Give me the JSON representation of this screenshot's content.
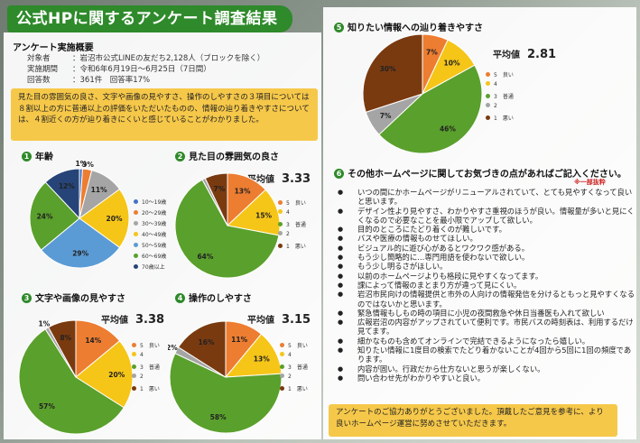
{
  "title": "公式HPに関するアンケート調査結果",
  "survey": {
    "heading": "アンケート実施概要",
    "rows": [
      {
        "label": "対象者",
        "value": "：岩沼市公式LINEの友だち2,128人（ブロックを除く）"
      },
      {
        "label": "実施期間",
        "value": "：令和6年6月19日～6月25日（7日間）"
      },
      {
        "label": "回答数",
        "value": "：361件　回答率17%"
      }
    ]
  },
  "summary": "見た目の雰囲気の良さ、文字や画像の見やすさ、操作のしやすさの３項目については８割以上の方に普通以上の評価をいただいたものの、情報の辿り着きやすさについては、４割近くの方が辿り着きにくいと感じていることがわかりました。",
  "legend_rating": [
    {
      "label": "5　良い",
      "color": "#ed7d31"
    },
    {
      "label": "4",
      "color": "#f5c518"
    },
    {
      "label": "3　普通",
      "color": "#5aa02c"
    },
    {
      "label": "2",
      "color": "#a5a5a5"
    },
    {
      "label": "1　悪い",
      "color": "#7a3a10"
    }
  ],
  "legend_age": [
    {
      "label": "10～19歳",
      "color": "#4472c4"
    },
    {
      "label": "20～29歳",
      "color": "#ed7d31"
    },
    {
      "label": "30～39歳",
      "color": "#a5a5a5"
    },
    {
      "label": "40～49歳",
      "color": "#f5c518"
    },
    {
      "label": "50～59歳",
      "color": "#5b9bd5"
    },
    {
      "label": "60～69歳",
      "color": "#5aa02c"
    },
    {
      "label": "70歳以上",
      "color": "#264478"
    }
  ],
  "chart_data": [
    {
      "type": "pie",
      "number": "1",
      "title": "年齢",
      "slices": [
        {
          "label": "10～19歳",
          "value": 1,
          "color": "#4472c4"
        },
        {
          "label": "20～29歳",
          "value": 3,
          "color": "#ed7d31"
        },
        {
          "label": "30～39歳",
          "value": 11,
          "color": "#a5a5a5"
        },
        {
          "label": "40～49歳",
          "value": 20,
          "color": "#f5c518"
        },
        {
          "label": "50～59歳",
          "value": 29,
          "color": "#5b9bd5"
        },
        {
          "label": "60～69歳",
          "value": 24,
          "color": "#5aa02c"
        },
        {
          "label": "70歳以上",
          "value": 12,
          "color": "#264478"
        }
      ]
    },
    {
      "type": "pie",
      "number": "2",
      "title": "見た目の雰囲気の良さ",
      "avg_label": "平均値",
      "avg": "3.33",
      "slices": [
        {
          "label": "5",
          "value": 13,
          "color": "#ed7d31"
        },
        {
          "label": "4",
          "value": 15,
          "color": "#f5c518"
        },
        {
          "label": "3",
          "value": 64,
          "color": "#5aa02c"
        },
        {
          "label": "2",
          "value": 1,
          "color": "#a5a5a5",
          "display": ""
        },
        {
          "label": "1",
          "value": 7,
          "color": "#7a3a10"
        }
      ]
    },
    {
      "type": "pie",
      "number": "3",
      "title": "文字や画像の見やすさ",
      "avg_label": "平均値",
      "avg": "3.38",
      "slices": [
        {
          "label": "5",
          "value": 14,
          "color": "#ed7d31"
        },
        {
          "label": "4",
          "value": 20,
          "color": "#f5c518"
        },
        {
          "label": "3",
          "value": 57,
          "color": "#5aa02c"
        },
        {
          "label": "2",
          "value": 1,
          "color": "#a5a5a5"
        },
        {
          "label": "1",
          "value": 8,
          "color": "#7a3a10"
        }
      ]
    },
    {
      "type": "pie",
      "number": "4",
      "title": "操作のしやすさ",
      "avg_label": "平均値",
      "avg": "3.15",
      "slices": [
        {
          "label": "5",
          "value": 11,
          "color": "#ed7d31"
        },
        {
          "label": "4",
          "value": 13,
          "color": "#f5c518"
        },
        {
          "label": "3",
          "value": 58,
          "color": "#5aa02c"
        },
        {
          "label": "2",
          "value": 2,
          "color": "#a5a5a5"
        },
        {
          "label": "1",
          "value": 16,
          "color": "#7a3a10"
        }
      ]
    },
    {
      "type": "pie",
      "number": "5",
      "title": "知りたい情報への辿り着きやすさ",
      "avg_label": "平均値",
      "avg": "2.81",
      "slices": [
        {
          "label": "5",
          "value": 7,
          "color": "#ed7d31"
        },
        {
          "label": "4",
          "value": 10,
          "color": "#f5c518"
        },
        {
          "label": "3",
          "value": 46,
          "color": "#5aa02c"
        },
        {
          "label": "2",
          "value": 7,
          "color": "#a5a5a5"
        },
        {
          "label": "1",
          "value": 30,
          "color": "#7a3a10"
        }
      ]
    }
  ],
  "comments": {
    "number": "6",
    "heading": "その他ホームページに関してお気づきの点があればご記入ください。",
    "note": "※一部抜粋",
    "items": [
      "いつの間にかホームページがリニューアルされていて、とても見やすくなって良いと思います。",
      "デザイン性より見やすさ、わかりやすさ重視のほうが良い。情報量が多いと見にくくなるので必要なことを最小限でアップして欲しい。",
      "目的のところにたどり着くのが難しいです。",
      "バスや医療の情報ものせてほしい。",
      "ビジュアル的に遊び心があるとワクワク感がある。",
      "もう少し簡略的に…専門用語を使わないで欲しい。",
      "もう少し明るさがほしい。",
      "以前のホームページよりも格段に見やすくなってます。",
      "課によって情報のまとまり方が違って見にくい。",
      "岩沼市民向けの情報提供と市外の人向けの情報発信を分けるともっと見やすくなるのではないかと思います。",
      "緊急情報もしもの時の項目に小児の夜間救急や休日当番医も入れて欲しい",
      "広報岩沼の内容がアップされていて便利です。市民バスの時刻表は、利用するだけ見てます。",
      "細かなものも含めてオンラインで完結できるようになったら嬉しい。",
      "知りたい情報に1度目の検索でたどり着かないことが4回から5回に1回の頻度であります。",
      "内容が固い。行政だから仕方ないと思うが楽しくない。",
      "問い合わせ先がわかりやすいと良い。"
    ]
  },
  "thanks": "アンケートのご協力ありがとうございました。頂戴したご意見を参考に、より良いホームページ運営に努めさせていただきます。"
}
